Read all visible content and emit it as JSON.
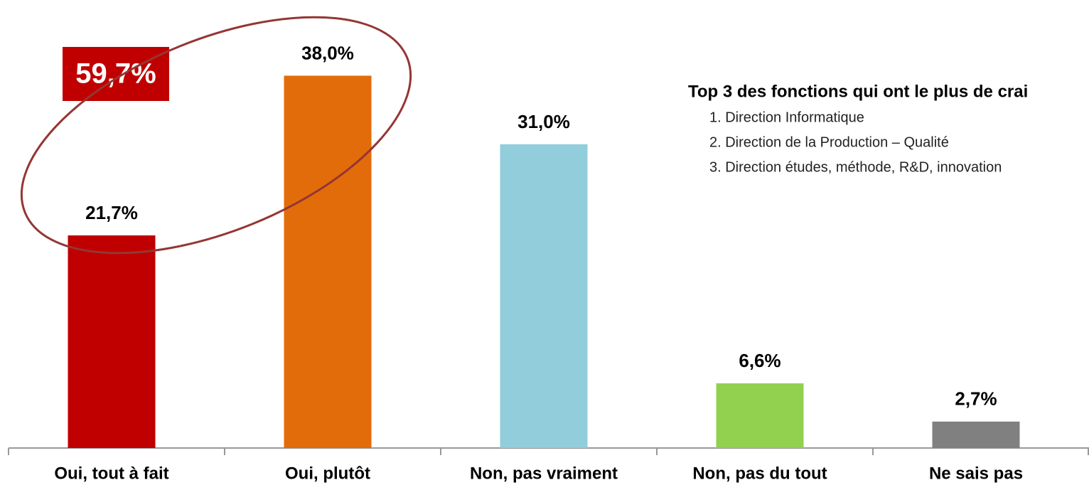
{
  "chart_data": {
    "type": "bar",
    "categories": [
      "Oui, tout à fait",
      "Oui, plutôt",
      "Non, pas vraiment",
      "Non, pas du tout",
      "Ne sais pas"
    ],
    "values": [
      21.7,
      38.0,
      31.0,
      6.6,
      2.7
    ],
    "value_labels": [
      "21,7%",
      "38,0%",
      "31,0%",
      "6,6%",
      "2,7%"
    ],
    "colors": [
      "#c00000",
      "#e36c0a",
      "#92cddc",
      "#92d050",
      "#808080"
    ],
    "ylim": [
      0,
      45
    ],
    "annotation": "59,7%",
    "note_title": "Top 3 des fonctions qui ont le plus de crai",
    "note_items": [
      "1. Direction Informatique",
      "2. Direction de la Production – Qualité",
      "3. Direction études, méthode, R&D, innovation"
    ]
  }
}
